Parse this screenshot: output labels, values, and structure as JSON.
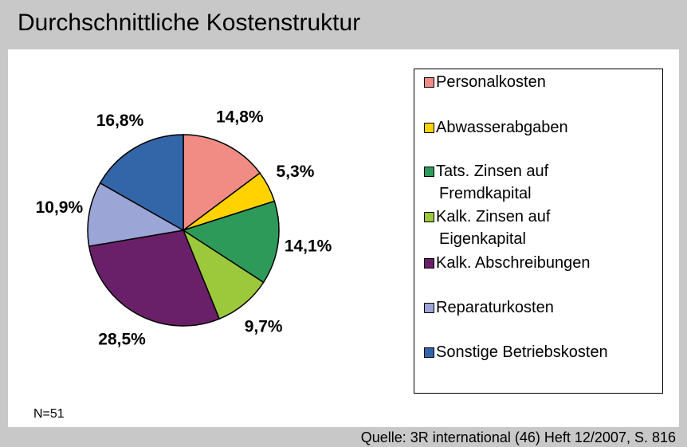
{
  "chart_data": {
    "type": "pie",
    "title": "Durchschnittliche Kostenstruktur",
    "categories": [
      "Personalkosten",
      "Abwasserabgaben",
      "Tats. Zinsen auf Fremdkapital",
      "Kalk. Zinsen auf Eigenkapital",
      "Kalk. Abschreibungen",
      "Reparaturkosten",
      "Sonstige Betriebskosten"
    ],
    "values": [
      14.8,
      5.3,
      14.1,
      9.7,
      28.5,
      10.9,
      16.8
    ],
    "value_labels": [
      "14,8%",
      "5,3%",
      "14,1%",
      "9,7%",
      "28,5%",
      "10,9%",
      "16,8%"
    ],
    "colors": [
      "#f08c84",
      "#ffd200",
      "#2e9a5a",
      "#9cc93c",
      "#6a2068",
      "#9ba6d6",
      "#3366a8"
    ],
    "note": "N=51",
    "source": "Quelle: 3R international (46) Heft 12/2007, S. 816"
  }
}
